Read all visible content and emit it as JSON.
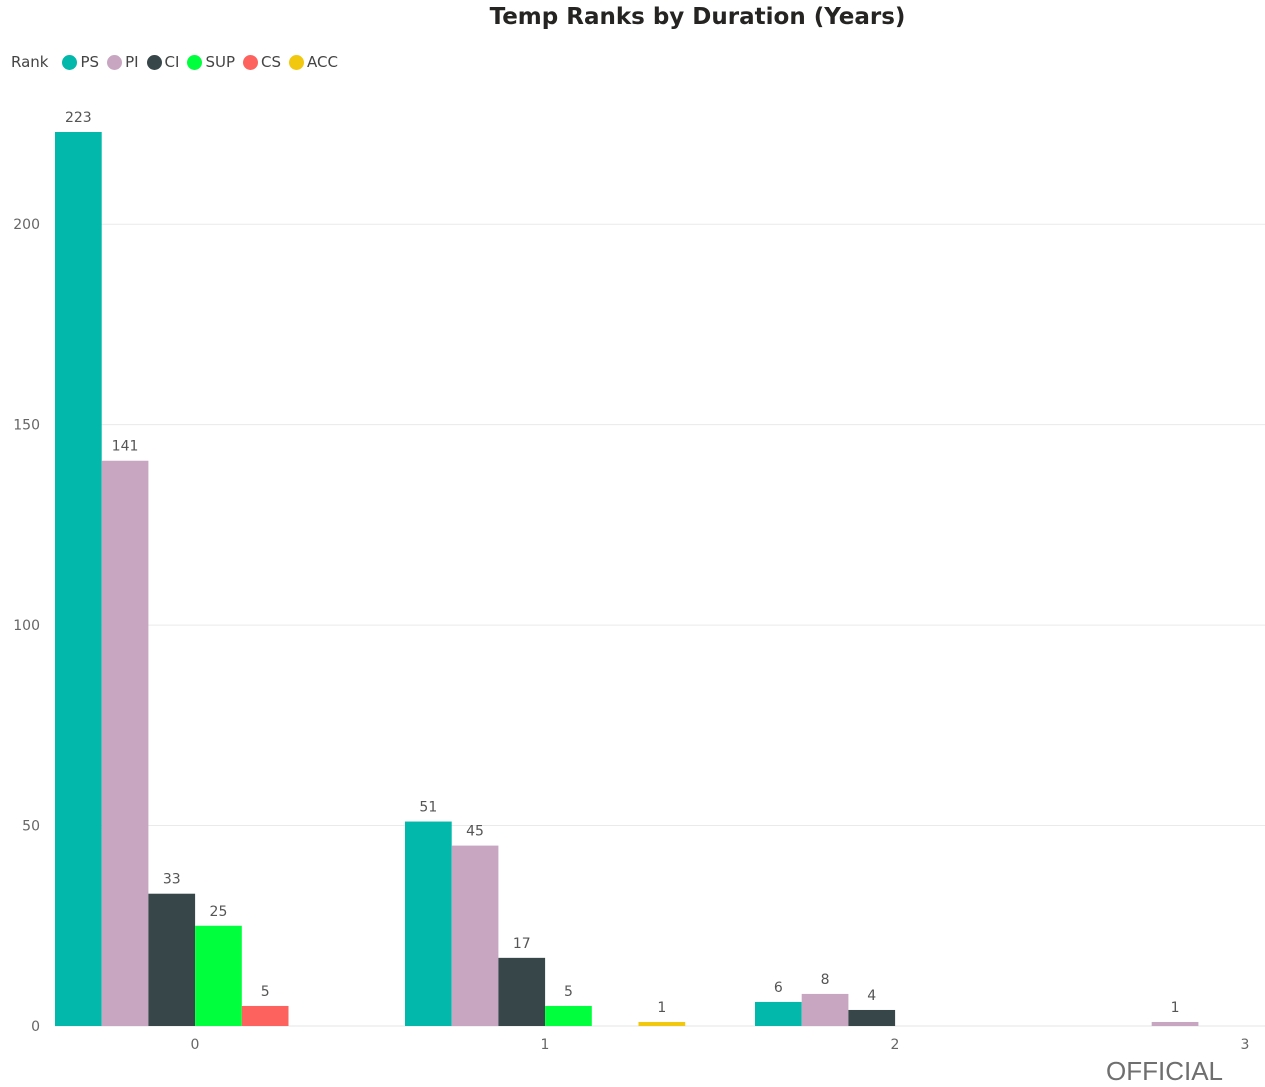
{
  "chart_data": {
    "type": "bar",
    "title": "Temp Ranks by Duration (Years)",
    "xlabel": "",
    "ylabel": "",
    "legend_title": "Rank",
    "legend_position": "top-left",
    "categories": [
      "0",
      "1",
      "2",
      "3"
    ],
    "ylim": [
      0,
      223
    ],
    "yticks": [
      0,
      50,
      100,
      150,
      200
    ],
    "grid": true,
    "series": [
      {
        "name": "PS",
        "color": "#01B8AA",
        "values": [
          223,
          51,
          6,
          null
        ]
      },
      {
        "name": "PI",
        "color": "#C8A6C2",
        "values": [
          141,
          45,
          8,
          1
        ]
      },
      {
        "name": "CI",
        "color": "#374649",
        "values": [
          33,
          17,
          4,
          null
        ]
      },
      {
        "name": "SUP",
        "color": "#00FF3C",
        "values": [
          25,
          5,
          null,
          null
        ]
      },
      {
        "name": "CS",
        "color": "#FD625E",
        "values": [
          5,
          null,
          null,
          null
        ]
      },
      {
        "name": "ACC",
        "color": "#F2C80F",
        "values": [
          null,
          1,
          null,
          null
        ]
      }
    ]
  },
  "footer": {
    "classification": "OFFICIAL"
  }
}
